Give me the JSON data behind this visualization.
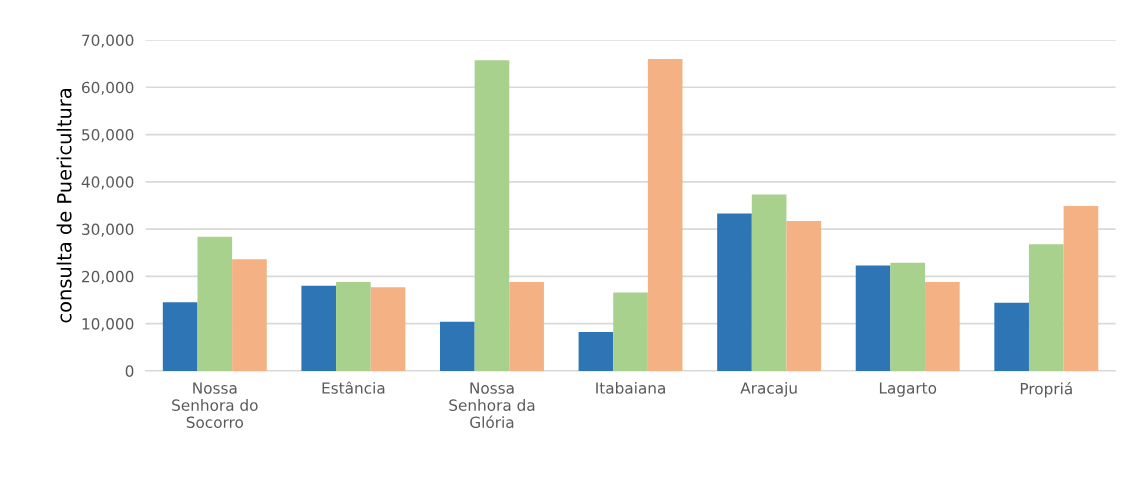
{
  "chart_data": {
    "type": "bar",
    "ylabel": "consulta de Puericultura",
    "categories": [
      "Nossa\nSenhora do\nSocorro",
      "Estância",
      "Nossa\nSenhora da\nGlória",
      "Itabaiana",
      "Aracaju",
      "Lagarto",
      "Propriá"
    ],
    "series": [
      {
        "color": "#2e75b6",
        "values": [
          14500,
          18000,
          10400,
          8200,
          33300,
          22300,
          14400
        ]
      },
      {
        "color": "#a9d18e",
        "values": [
          28400,
          18800,
          65700,
          16600,
          37300,
          22900,
          26800
        ]
      },
      {
        "color": "#f4b183",
        "values": [
          23600,
          17700,
          18800,
          66000,
          31700,
          18800,
          34900
        ]
      }
    ],
    "ylim": [
      0,
      70000
    ],
    "yticks": [
      {
        "value": 0,
        "label": "0"
      },
      {
        "value": 10000,
        "label": "10,000"
      },
      {
        "value": 20000,
        "label": "20,000"
      },
      {
        "value": 30000,
        "label": "30,000"
      },
      {
        "value": 40000,
        "label": "40,000"
      },
      {
        "value": 50000,
        "label": "50,000"
      },
      {
        "value": 60000,
        "label": "60,000"
      },
      {
        "value": 70000,
        "label": "70,000"
      }
    ],
    "grid": "y"
  }
}
